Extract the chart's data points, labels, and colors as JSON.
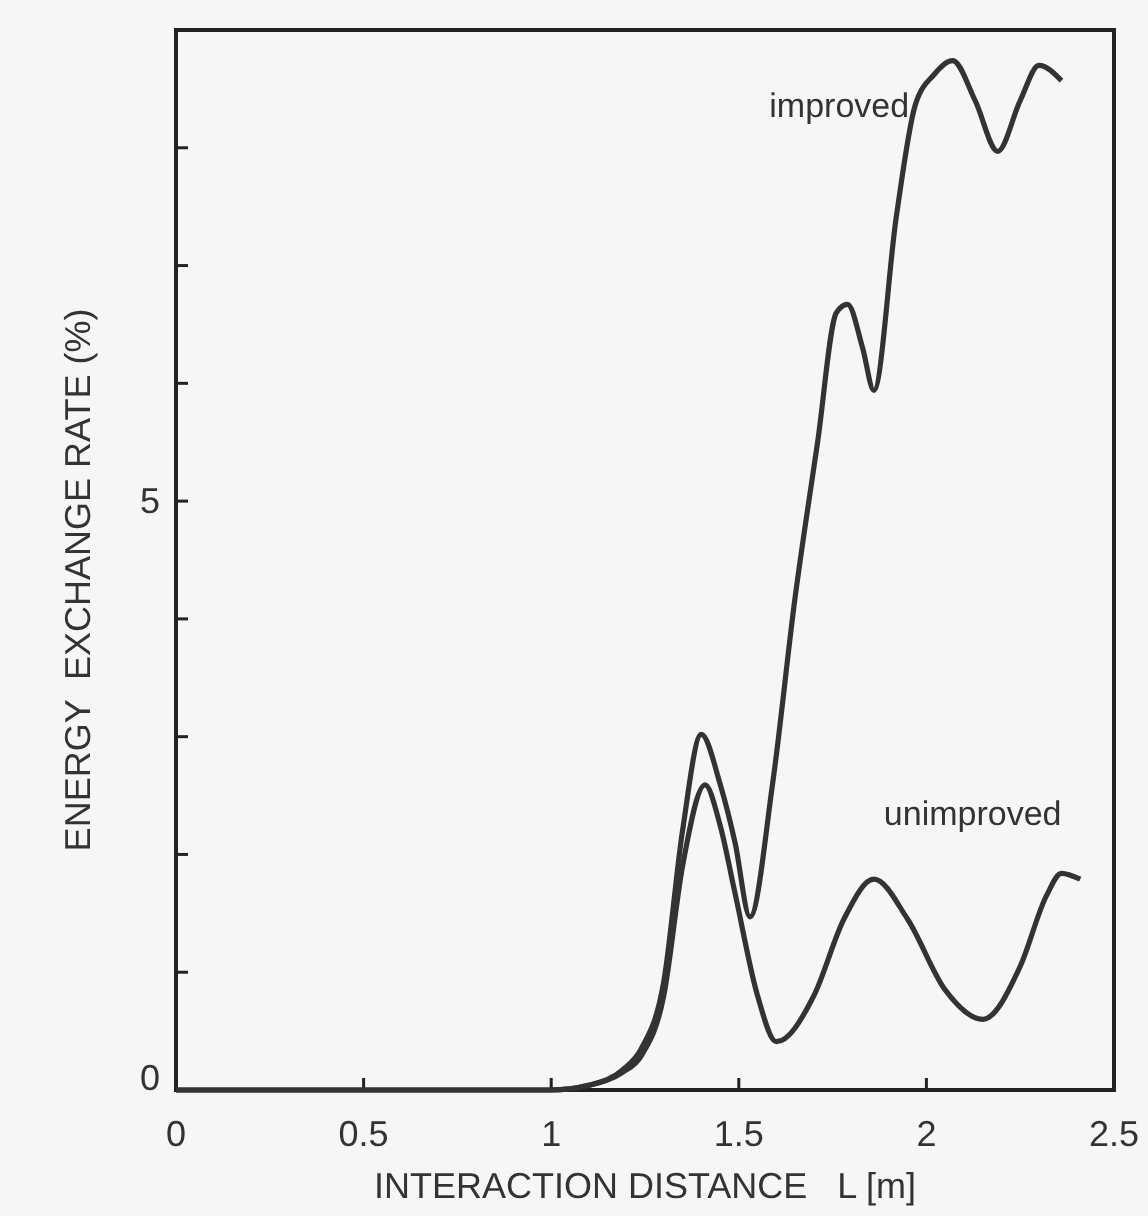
{
  "chart_data": {
    "type": "line",
    "xlabel": "INTERACTION DISTANCE   L [m]",
    "ylabel": "ENERGY  EXCHANGE RATE (%)",
    "xlim": [
      0,
      2.5
    ],
    "xticks": [
      0,
      0.5,
      1,
      1.5,
      2,
      2.5
    ],
    "ylim": [
      0,
      9
    ],
    "yticks": [
      0,
      {
        "value": 1,
        "label": null
      },
      {
        "value": 2,
        "label": null
      },
      {
        "value": 3,
        "label": null
      },
      {
        "value": 4,
        "label": null
      },
      5,
      {
        "value": 6,
        "label": null
      },
      {
        "value": 7,
        "label": null
      },
      {
        "value": 8,
        "label": null
      }
    ],
    "legend": false,
    "grid": false,
    "marker": "none",
    "line_style": "solid",
    "series": [
      {
        "name": "improved",
        "color": "#333333",
        "x": [
          0,
          0.5,
          1.0,
          1.1,
          1.19,
          1.24,
          1.3,
          1.35,
          1.4,
          1.45,
          1.49,
          1.53,
          1.59,
          1.65,
          1.71,
          1.76,
          1.79,
          1.83,
          1.86,
          1.92,
          1.97,
          2.02,
          2.07,
          2.13,
          2.19,
          2.25,
          2.3,
          2.36
        ],
        "values": [
          0,
          0,
          0,
          0.04,
          0.17,
          0.35,
          0.92,
          2.2,
          3.02,
          2.6,
          2.1,
          1.47,
          2.6,
          4.18,
          5.5,
          6.6,
          6.67,
          6.3,
          5.94,
          7.42,
          8.36,
          8.62,
          8.74,
          8.4,
          7.97,
          8.4,
          8.7,
          8.57
        ]
      },
      {
        "name": "unimproved",
        "color": "#333333",
        "x": [
          0,
          0.5,
          1.0,
          1.1,
          1.19,
          1.24,
          1.3,
          1.35,
          1.41,
          1.45,
          1.49,
          1.55,
          1.6,
          1.7,
          1.78,
          1.86,
          1.95,
          2.05,
          2.15,
          2.25,
          2.32,
          2.36,
          2.41
        ],
        "values": [
          0,
          0,
          0,
          0.04,
          0.15,
          0.29,
          0.8,
          1.9,
          2.59,
          2.25,
          1.67,
          0.8,
          0.41,
          0.8,
          1.45,
          1.79,
          1.45,
          0.85,
          0.6,
          1.05,
          1.65,
          1.84,
          1.79
        ]
      }
    ]
  }
}
